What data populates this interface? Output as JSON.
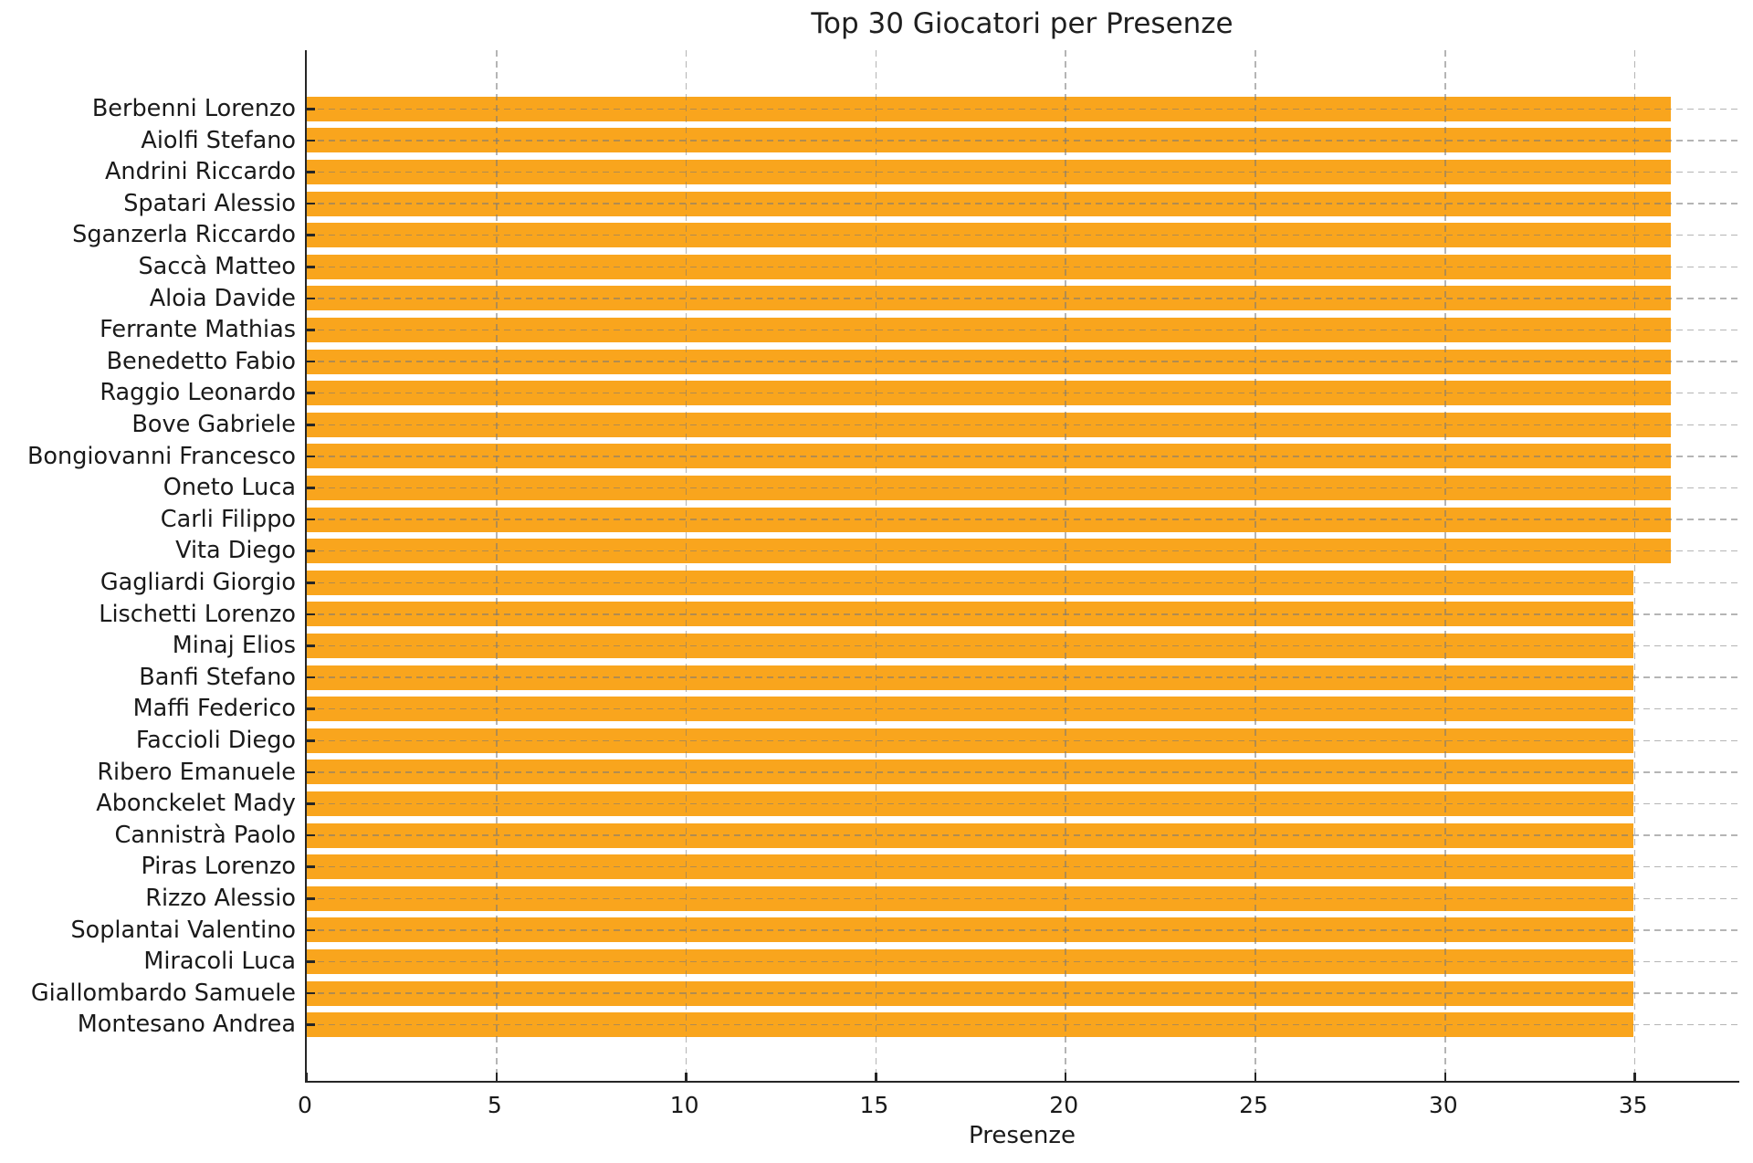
{
  "chart_data": {
    "type": "bar",
    "orientation": "horizontal",
    "title": "Top 30 Giocatori per Presenze",
    "xlabel": "Presenze",
    "categories": [
      "Berbenni Lorenzo",
      "Aiolfi Stefano",
      "Andrini Riccardo",
      "Spatari Alessio",
      "Sganzerla Riccardo",
      "Saccà Matteo",
      "Aloia Davide",
      "Ferrante Mathias",
      "Benedetto Fabio",
      "Raggio Leonardo",
      "Bove Gabriele",
      "Bongiovanni Francesco",
      "Oneto Luca",
      "Carli Filippo",
      "Vita Diego",
      "Gagliardi Giorgio",
      "Lischetti Lorenzo",
      "Minaj Elios",
      "Banfi Stefano",
      "Maffi Federico",
      "Faccioli Diego",
      "Ribero Emanuele",
      "Abonckelet Mady",
      "Cannistrà Paolo",
      "Piras Lorenzo",
      "Rizzo Alessio",
      "Soplantai Valentino",
      "Miracoli Luca",
      "Giallombardo Samuele",
      "Montesano Andrea"
    ],
    "values": [
      36,
      36,
      36,
      36,
      36,
      36,
      36,
      36,
      36,
      36,
      36,
      36,
      36,
      36,
      36,
      35,
      35,
      35,
      35,
      35,
      35,
      35,
      35,
      35,
      35,
      35,
      35,
      35,
      35,
      35
    ],
    "xlim": [
      0,
      37.8
    ],
    "xticks": [
      0,
      5,
      10,
      15,
      20,
      25,
      30,
      35
    ],
    "grid": true,
    "grid_line_style": "dashed",
    "legend_position": "none",
    "bar_color": "#F9A51D",
    "axis_color": "#262626",
    "grid_color": "#787878",
    "text_color": "#1a1a1a",
    "background_color": "#ffffff"
  }
}
